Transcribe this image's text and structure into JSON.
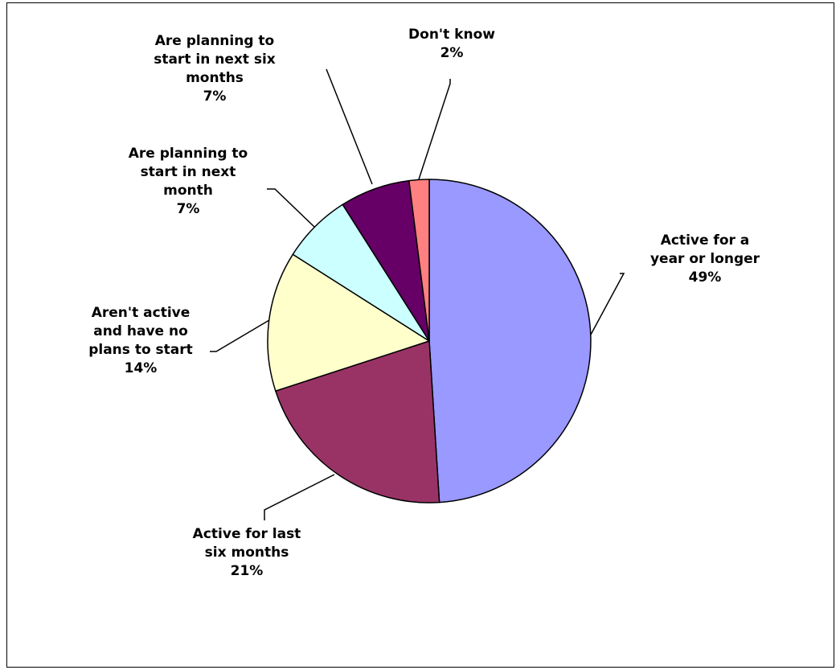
{
  "chart_data": {
    "type": "pie",
    "title": "",
    "categories": [
      "Active for a year or longer",
      "Active for last six months",
      "Aren't active and have no plans to start",
      "Are planning to start in next month",
      "Are planning to start in next six months",
      "Don't know"
    ],
    "values": [
      49,
      21,
      14,
      7,
      7,
      2
    ],
    "colors": [
      "#9999ff",
      "#993366",
      "#ffffcc",
      "#ccffff",
      "#660066",
      "#ff8080"
    ],
    "data_labels": [
      {
        "lines": [
          "Active for a",
          "year or longer"
        ],
        "pct": "49%"
      },
      {
        "lines": [
          "Active for last",
          "six months"
        ],
        "pct": "21%"
      },
      {
        "lines": [
          "Aren't active",
          "and have no",
          "plans to start"
        ],
        "pct": "14%"
      },
      {
        "lines": [
          "Are planning to",
          "start in next",
          "month"
        ],
        "pct": "7%"
      },
      {
        "lines": [
          "Are planning to",
          "start in next six",
          "months"
        ],
        "pct": "7%"
      },
      {
        "lines": [
          "Don't know"
        ],
        "pct": "2%"
      }
    ],
    "start_angle": "12 o'clock",
    "direction": "clockwise",
    "legend": "none"
  }
}
